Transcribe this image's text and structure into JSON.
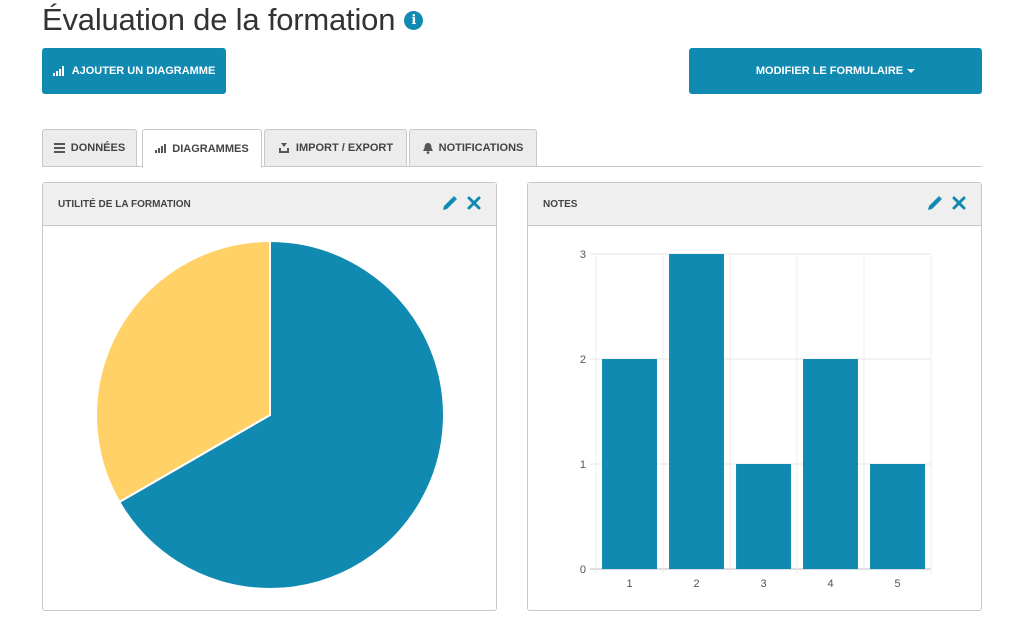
{
  "page": {
    "title": "Évaluation de la formation"
  },
  "toolbar": {
    "add_chart_label": "AJOUTER UN DIAGRAMME",
    "edit_form_label": "MODIFIER LE FORMULAIRE"
  },
  "tabs": [
    {
      "label": "DONNÉES",
      "icon": "list-icon",
      "active": false
    },
    {
      "label": "DIAGRAMMES",
      "icon": "bar-chart-icon",
      "active": true
    },
    {
      "label": "IMPORT / EXPORT",
      "icon": "import-export-icon",
      "active": false
    },
    {
      "label": "NOTIFICATIONS",
      "icon": "bell-icon",
      "active": false
    }
  ],
  "panels": {
    "left": {
      "title": "UTILITÉ DE LA FORMATION"
    },
    "right": {
      "title": "NOTES"
    }
  },
  "colors": {
    "primary": "#118ab2",
    "secondary": "#ffd166"
  },
  "chart_data": [
    {
      "type": "pie",
      "title": "UTILITÉ DE LA FORMATION",
      "slices": [
        {
          "value": 2,
          "color": "#118ab2"
        },
        {
          "value": 1,
          "color": "#ffd166"
        }
      ]
    },
    {
      "type": "bar",
      "title": "NOTES",
      "categories": [
        "1",
        "2",
        "3",
        "4",
        "5"
      ],
      "values": [
        2,
        3,
        1,
        2,
        1
      ],
      "ylim": [
        0,
        3
      ],
      "yticks": [
        "0",
        "1",
        "2",
        "3"
      ],
      "grid": true,
      "color": "#118ab2"
    }
  ]
}
